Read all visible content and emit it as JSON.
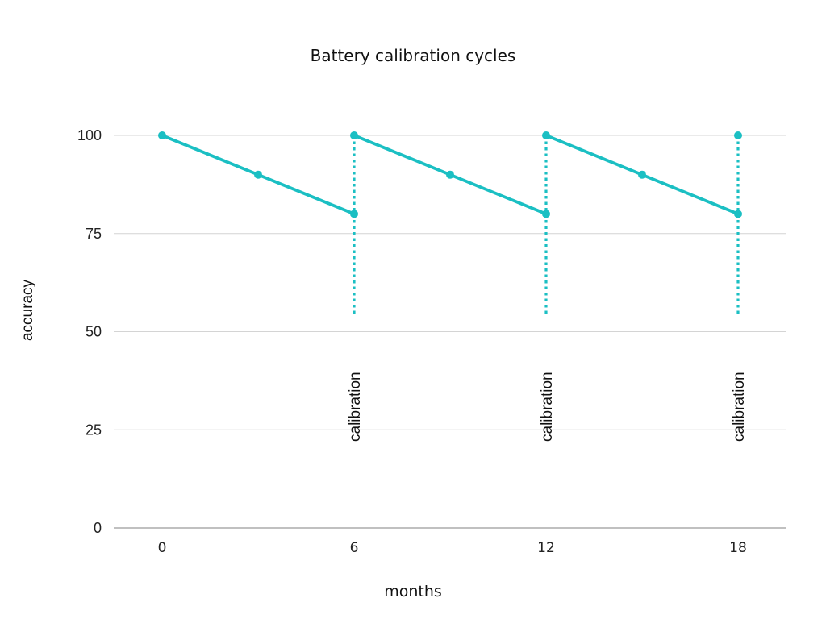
{
  "chart_data": {
    "type": "line",
    "title": "Battery calibration cycles",
    "xlabel": "months",
    "ylabel": "accuracy",
    "xlim": [
      0,
      18
    ],
    "ylim": [
      0,
      100
    ],
    "x_ticks": [
      0,
      6,
      12,
      18
    ],
    "y_ticks": [
      0,
      25,
      50,
      75,
      100
    ],
    "grid": true,
    "line_color": "#1bbfc3",
    "series": [
      {
        "name": "accuracy",
        "style": "solid",
        "x": [
          0,
          3,
          6,
          6,
          9,
          12,
          12,
          15,
          18,
          18
        ],
        "y": [
          100,
          90,
          80,
          100,
          90,
          80,
          100,
          90,
          80,
          100
        ],
        "segments": [
          {
            "x": [
              0,
              3,
              6
            ],
            "y": [
              100,
              90,
              80
            ]
          },
          {
            "x": [
              6,
              9,
              12
            ],
            "y": [
              100,
              90,
              80
            ]
          },
          {
            "x": [
              12,
              15,
              18
            ],
            "y": [
              100,
              90,
              80
            ]
          }
        ]
      },
      {
        "name": "calibration markers",
        "style": "dotted",
        "vlines": [
          {
            "x": 6,
            "y_from": 54,
            "y_to": 100
          },
          {
            "x": 12,
            "y_from": 54,
            "y_to": 100
          },
          {
            "x": 18,
            "y_from": 54,
            "y_to": 100
          }
        ]
      },
      {
        "name": "calibration top points",
        "style": "point",
        "x": [
          18
        ],
        "y": [
          100
        ]
      }
    ],
    "annotations": [
      {
        "text": "calibration",
        "x": 6,
        "rotation": -90
      },
      {
        "text": "calibration",
        "x": 12,
        "rotation": -90
      },
      {
        "text": "calibration",
        "x": 18,
        "rotation": -90
      }
    ]
  }
}
